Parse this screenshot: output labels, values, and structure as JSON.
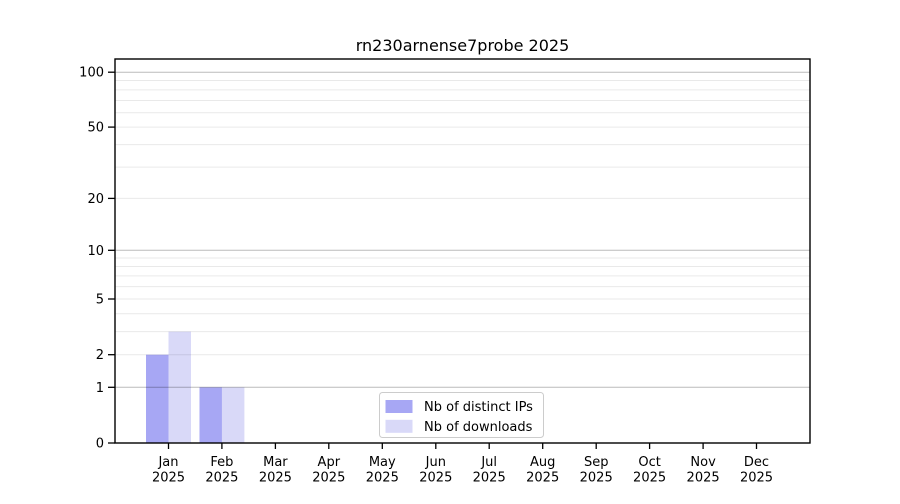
{
  "title": "rn230arnense7probe 2025",
  "chart_data": {
    "type": "bar",
    "title": "rn230arnense7probe 2025",
    "categories": [
      "Jan",
      "Feb",
      "Mar",
      "Apr",
      "May",
      "Jun",
      "Jul",
      "Aug",
      "Sep",
      "Oct",
      "Nov",
      "Dec"
    ],
    "category_year": "2025",
    "series": [
      {
        "name": "Nb of distinct IPs",
        "color": "#a7a7f4",
        "values": [
          2,
          1,
          0,
          0,
          0,
          0,
          0,
          0,
          0,
          0,
          0,
          0
        ]
      },
      {
        "name": "Nb of downloads",
        "color": "#d9d9f8",
        "values": [
          3,
          1,
          0,
          0,
          0,
          0,
          0,
          0,
          0,
          0,
          0,
          0
        ]
      }
    ],
    "yscale": "log1p",
    "ylim": [
      0,
      110
    ],
    "yticks": [
      0,
      1,
      2,
      5,
      10,
      20,
      50,
      100
    ],
    "grid": true,
    "grid_major_at": [
      1,
      10,
      100
    ],
    "grid_minor_at": [
      2,
      3,
      4,
      5,
      6,
      7,
      8,
      9,
      20,
      30,
      40,
      50,
      60,
      70,
      80,
      90
    ],
    "legend_position": "lower-center-inside",
    "colors": {
      "background": "#ffffff",
      "axis": "#000000",
      "grid_major": "#bbbbbb",
      "grid_minor": "#e9e9e9",
      "text": "#000000",
      "legend_border": "#cccccc",
      "legend_fill": "#ffffff"
    }
  }
}
